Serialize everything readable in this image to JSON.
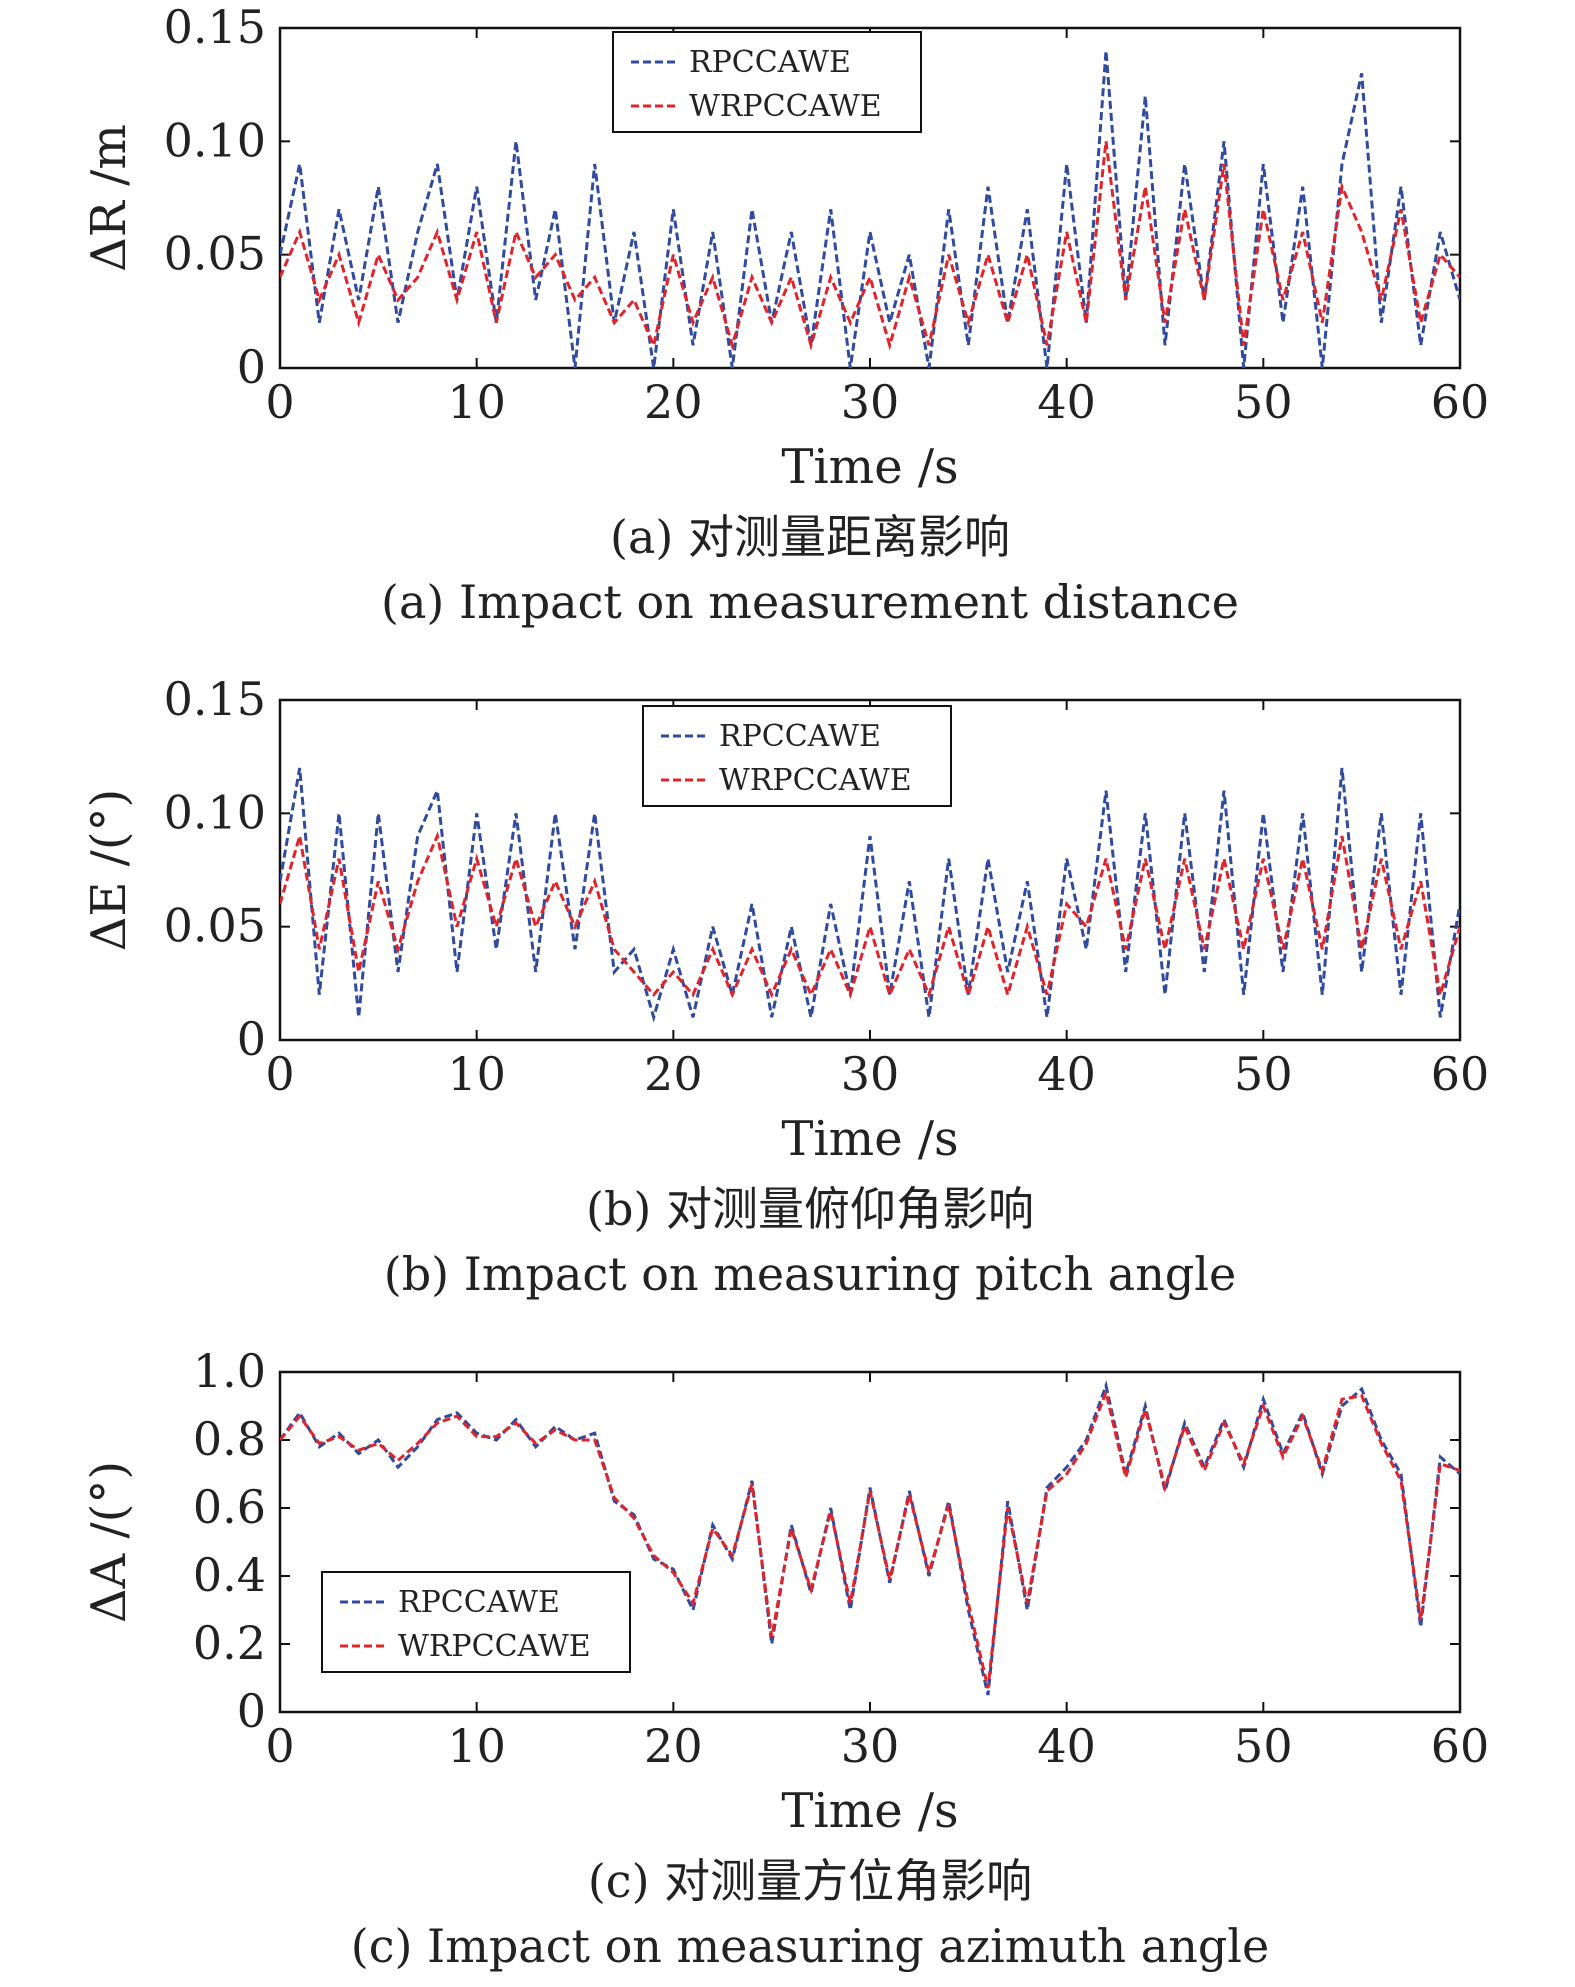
{
  "chart_data": [
    {
      "type": "line",
      "ylabel": "ΔR /m",
      "xlabel": "Time /s",
      "xlim": [
        0,
        60
      ],
      "ylim": [
        0,
        0.15
      ],
      "xticks": [
        "0",
        "10",
        "20",
        "30",
        "40",
        "50",
        "60"
      ],
      "yticks": [
        "0",
        "0.05",
        "0.10",
        "0.15"
      ],
      "legend_position": "top-center",
      "caption_cn": "(a) 对测量距离影响",
      "caption_en": "(a) Impact on measurement distance",
      "series": [
        {
          "name": "RPCCAWE",
          "color": "#2f4a9e",
          "x": [
            0,
            1,
            2,
            3,
            4,
            5,
            6,
            7,
            8,
            9,
            10,
            11,
            12,
            13,
            14,
            15,
            16,
            17,
            18,
            19,
            20,
            21,
            22,
            23,
            24,
            25,
            26,
            27,
            28,
            29,
            30,
            31,
            32,
            33,
            34,
            35,
            36,
            37,
            38,
            39,
            40,
            41,
            42,
            43,
            44,
            45,
            46,
            47,
            48,
            49,
            50,
            51,
            52,
            53,
            54,
            55,
            56,
            57,
            58,
            59,
            60
          ],
          "values": [
            0.05,
            0.09,
            0.02,
            0.07,
            0.03,
            0.08,
            0.02,
            0.06,
            0.09,
            0.03,
            0.08,
            0.02,
            0.1,
            0.03,
            0.07,
            0.0,
            0.09,
            0.02,
            0.06,
            0.0,
            0.07,
            0.01,
            0.06,
            0.0,
            0.07,
            0.02,
            0.06,
            0.01,
            0.07,
            0.0,
            0.06,
            0.02,
            0.05,
            0.0,
            0.07,
            0.01,
            0.08,
            0.02,
            0.07,
            0.0,
            0.09,
            0.02,
            0.14,
            0.03,
            0.12,
            0.01,
            0.09,
            0.03,
            0.1,
            0.0,
            0.09,
            0.02,
            0.08,
            0.0,
            0.09,
            0.13,
            0.02,
            0.08,
            0.01,
            0.06,
            0.03
          ]
        },
        {
          "name": "WRPCCAWE",
          "color": "#e0242c",
          "x": [
            0,
            1,
            2,
            3,
            4,
            5,
            6,
            7,
            8,
            9,
            10,
            11,
            12,
            13,
            14,
            15,
            16,
            17,
            18,
            19,
            20,
            21,
            22,
            23,
            24,
            25,
            26,
            27,
            28,
            29,
            30,
            31,
            32,
            33,
            34,
            35,
            36,
            37,
            38,
            39,
            40,
            41,
            42,
            43,
            44,
            45,
            46,
            47,
            48,
            49,
            50,
            51,
            52,
            53,
            54,
            55,
            56,
            57,
            58,
            59,
            60
          ],
          "values": [
            0.04,
            0.06,
            0.03,
            0.05,
            0.02,
            0.05,
            0.03,
            0.04,
            0.06,
            0.03,
            0.06,
            0.02,
            0.06,
            0.04,
            0.05,
            0.03,
            0.04,
            0.02,
            0.03,
            0.01,
            0.05,
            0.02,
            0.04,
            0.01,
            0.04,
            0.02,
            0.04,
            0.01,
            0.04,
            0.02,
            0.04,
            0.01,
            0.04,
            0.01,
            0.05,
            0.02,
            0.05,
            0.02,
            0.05,
            0.01,
            0.06,
            0.02,
            0.1,
            0.03,
            0.08,
            0.02,
            0.07,
            0.03,
            0.09,
            0.01,
            0.07,
            0.03,
            0.06,
            0.02,
            0.08,
            0.06,
            0.03,
            0.07,
            0.02,
            0.05,
            0.04
          ]
        }
      ]
    },
    {
      "type": "line",
      "ylabel": "ΔE /(°)",
      "xlabel": "Time /s",
      "xlim": [
        0,
        60
      ],
      "ylim": [
        0,
        0.15
      ],
      "xticks": [
        "0",
        "10",
        "20",
        "30",
        "40",
        "50",
        "60"
      ],
      "yticks": [
        "0",
        "0.05",
        "0.10",
        "0.15"
      ],
      "legend_position": "top-center",
      "caption_cn": "(b) 对测量俯仰角影响",
      "caption_en": "(b) Impact on measuring pitch angle",
      "series": [
        {
          "name": "RPCCAWE",
          "color": "#2f4a9e",
          "x": [
            0,
            1,
            2,
            3,
            4,
            5,
            6,
            7,
            8,
            9,
            10,
            11,
            12,
            13,
            14,
            15,
            16,
            17,
            18,
            19,
            20,
            21,
            22,
            23,
            24,
            25,
            26,
            27,
            28,
            29,
            30,
            31,
            32,
            33,
            34,
            35,
            36,
            37,
            38,
            39,
            40,
            41,
            42,
            43,
            44,
            45,
            46,
            47,
            48,
            49,
            50,
            51,
            52,
            53,
            54,
            55,
            56,
            57,
            58,
            59,
            60
          ],
          "values": [
            0.07,
            0.12,
            0.02,
            0.1,
            0.01,
            0.1,
            0.03,
            0.09,
            0.11,
            0.03,
            0.1,
            0.04,
            0.1,
            0.03,
            0.1,
            0.04,
            0.1,
            0.03,
            0.04,
            0.01,
            0.04,
            0.01,
            0.05,
            0.02,
            0.06,
            0.01,
            0.05,
            0.01,
            0.06,
            0.02,
            0.09,
            0.02,
            0.07,
            0.01,
            0.08,
            0.02,
            0.08,
            0.03,
            0.07,
            0.01,
            0.08,
            0.04,
            0.11,
            0.03,
            0.1,
            0.02,
            0.1,
            0.03,
            0.11,
            0.02,
            0.1,
            0.03,
            0.1,
            0.02,
            0.12,
            0.03,
            0.1,
            0.02,
            0.1,
            0.01,
            0.06
          ]
        },
        {
          "name": "WRPCCAWE",
          "color": "#e0242c",
          "x": [
            0,
            1,
            2,
            3,
            4,
            5,
            6,
            7,
            8,
            9,
            10,
            11,
            12,
            13,
            14,
            15,
            16,
            17,
            18,
            19,
            20,
            21,
            22,
            23,
            24,
            25,
            26,
            27,
            28,
            29,
            30,
            31,
            32,
            33,
            34,
            35,
            36,
            37,
            38,
            39,
            40,
            41,
            42,
            43,
            44,
            45,
            46,
            47,
            48,
            49,
            50,
            51,
            52,
            53,
            54,
            55,
            56,
            57,
            58,
            59,
            60
          ],
          "values": [
            0.06,
            0.09,
            0.04,
            0.08,
            0.03,
            0.07,
            0.04,
            0.07,
            0.09,
            0.05,
            0.08,
            0.05,
            0.08,
            0.05,
            0.07,
            0.05,
            0.07,
            0.04,
            0.03,
            0.02,
            0.03,
            0.02,
            0.04,
            0.02,
            0.04,
            0.02,
            0.04,
            0.02,
            0.04,
            0.02,
            0.05,
            0.02,
            0.04,
            0.02,
            0.05,
            0.02,
            0.05,
            0.02,
            0.05,
            0.02,
            0.06,
            0.05,
            0.08,
            0.04,
            0.08,
            0.04,
            0.08,
            0.04,
            0.08,
            0.04,
            0.08,
            0.04,
            0.08,
            0.04,
            0.09,
            0.04,
            0.08,
            0.04,
            0.07,
            0.02,
            0.05
          ]
        }
      ]
    },
    {
      "type": "line",
      "ylabel": "ΔA /(°)",
      "xlabel": "Time /s",
      "xlim": [
        0,
        60
      ],
      "ylim": [
        0,
        1.0
      ],
      "xticks": [
        "0",
        "10",
        "20",
        "30",
        "40",
        "50",
        "60"
      ],
      "yticks": [
        "0",
        "0.2",
        "0.4",
        "0.6",
        "0.8",
        "1.0"
      ],
      "legend_position": "bottom-left",
      "caption_cn": "(c) 对测量方位角影响",
      "caption_en": "(c) Impact on measuring azimuth angle",
      "series": [
        {
          "name": "RPCCAWE",
          "color": "#2f4a9e",
          "x": [
            0,
            1,
            2,
            3,
            4,
            5,
            6,
            7,
            8,
            9,
            10,
            11,
            12,
            13,
            14,
            15,
            16,
            17,
            18,
            19,
            20,
            21,
            22,
            23,
            24,
            25,
            26,
            27,
            28,
            29,
            30,
            31,
            32,
            33,
            34,
            35,
            36,
            37,
            38,
            39,
            40,
            41,
            42,
            43,
            44,
            45,
            46,
            47,
            48,
            49,
            50,
            51,
            52,
            53,
            54,
            55,
            56,
            57,
            58,
            59,
            60
          ],
          "values": [
            0.8,
            0.88,
            0.78,
            0.82,
            0.76,
            0.8,
            0.72,
            0.78,
            0.86,
            0.88,
            0.82,
            0.8,
            0.86,
            0.78,
            0.84,
            0.8,
            0.82,
            0.62,
            0.58,
            0.45,
            0.42,
            0.3,
            0.55,
            0.45,
            0.68,
            0.2,
            0.55,
            0.35,
            0.6,
            0.3,
            0.66,
            0.38,
            0.65,
            0.4,
            0.62,
            0.3,
            0.05,
            0.62,
            0.3,
            0.66,
            0.72,
            0.8,
            0.96,
            0.7,
            0.9,
            0.65,
            0.85,
            0.72,
            0.86,
            0.72,
            0.92,
            0.76,
            0.88,
            0.7,
            0.9,
            0.95,
            0.8,
            0.7,
            0.25,
            0.75,
            0.7
          ]
        },
        {
          "name": "WRPCCAWE",
          "color": "#e0242c",
          "x": [
            0,
            1,
            2,
            3,
            4,
            5,
            6,
            7,
            8,
            9,
            10,
            11,
            12,
            13,
            14,
            15,
            16,
            17,
            18,
            19,
            20,
            21,
            22,
            23,
            24,
            25,
            26,
            27,
            28,
            29,
            30,
            31,
            32,
            33,
            34,
            35,
            36,
            37,
            38,
            39,
            40,
            41,
            42,
            43,
            44,
            45,
            46,
            47,
            48,
            49,
            50,
            51,
            52,
            53,
            54,
            55,
            56,
            57,
            58,
            59,
            60
          ],
          "values": [
            0.8,
            0.87,
            0.79,
            0.81,
            0.77,
            0.79,
            0.74,
            0.79,
            0.85,
            0.87,
            0.81,
            0.81,
            0.85,
            0.79,
            0.83,
            0.8,
            0.8,
            0.63,
            0.57,
            0.46,
            0.41,
            0.32,
            0.54,
            0.46,
            0.67,
            0.22,
            0.54,
            0.36,
            0.59,
            0.32,
            0.65,
            0.39,
            0.64,
            0.41,
            0.61,
            0.32,
            0.07,
            0.6,
            0.32,
            0.65,
            0.7,
            0.79,
            0.94,
            0.69,
            0.89,
            0.66,
            0.84,
            0.71,
            0.85,
            0.73,
            0.9,
            0.75,
            0.87,
            0.71,
            0.92,
            0.93,
            0.79,
            0.68,
            0.27,
            0.73,
            0.71
          ]
        }
      ]
    }
  ]
}
